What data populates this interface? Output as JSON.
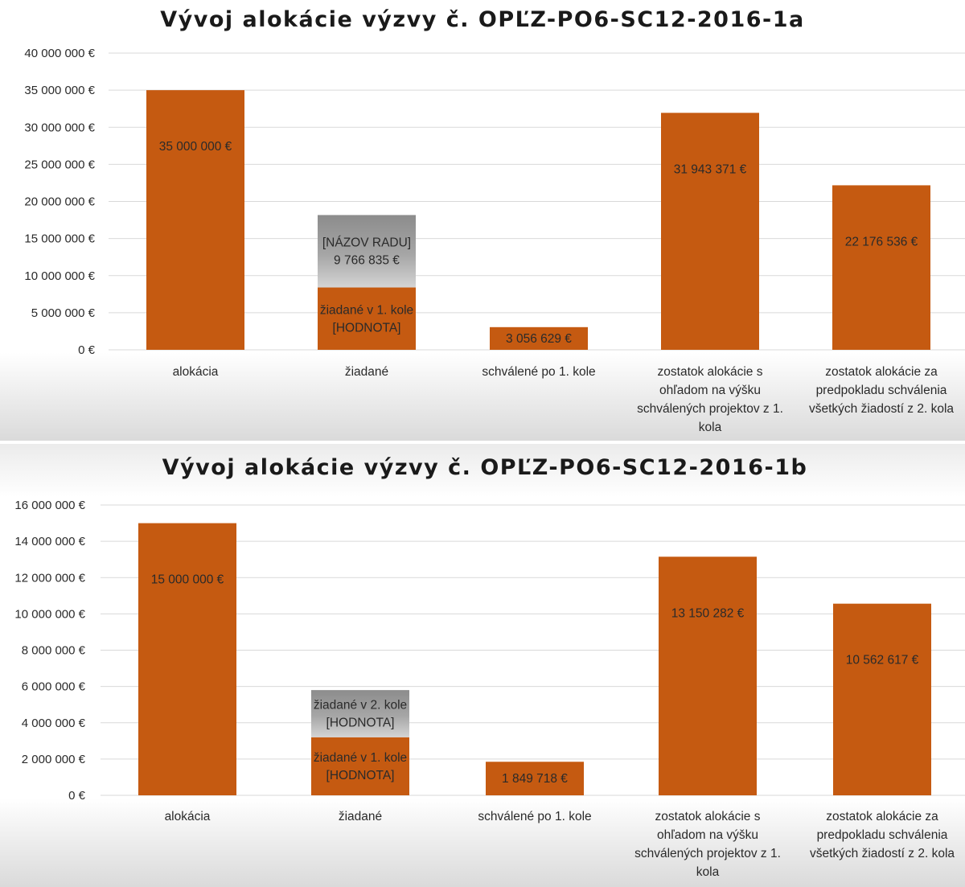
{
  "chart_data": [
    {
      "type": "bar",
      "stacked": true,
      "title": "Vývoj alokácie výzvy č. OPĽZ-PO6-SC12-2016-1a",
      "categories": [
        "alokácia",
        "žiadané",
        "schválené po 1. kole",
        "zostatok alokácie s ohľadom na výšku schválených projektov z 1. kola",
        "zostatok alokácie za predpokladu schválenia všetkých žiadostí z 2. kola"
      ],
      "category_lines": [
        [
          "alokácia"
        ],
        [
          "žiadané"
        ],
        [
          "schválené po 1. kole"
        ],
        [
          "zostatok alokácie s",
          "ohľadom na výšku",
          "schválených projektov z 1.",
          "kola"
        ],
        [
          "zostatok alokácie za",
          "predpokladu schválenia",
          "všetkých žiadostí z 2. kola"
        ]
      ],
      "series": [
        {
          "role": "base",
          "color": "#c55a11",
          "values": [
            35000000,
            8400000,
            3056629,
            31943371,
            22176536
          ]
        },
        {
          "role": "top",
          "color": "#a6a6a6",
          "values": [
            null,
            9766835,
            null,
            null,
            null
          ]
        }
      ],
      "labels": [
        {
          "category": 0,
          "segment": "base",
          "lines": [
            "35 000 000 €"
          ]
        },
        {
          "category": 1,
          "segment": "base",
          "lines": [
            "žiadané v 1. kole",
            "[HODNOTA]"
          ]
        },
        {
          "category": 1,
          "segment": "top",
          "lines": [
            "[NÁZOV RADU]",
            "9 766 835 €"
          ]
        },
        {
          "category": 2,
          "segment": "base",
          "lines": [
            "3 056 629 €"
          ]
        },
        {
          "category": 3,
          "segment": "base",
          "lines": [
            "31 943 371 €"
          ]
        },
        {
          "category": 4,
          "segment": "base",
          "lines": [
            "22 176 536 €"
          ]
        }
      ],
      "ylim": [
        0,
        40000000
      ],
      "yticks": [
        0,
        5000000,
        10000000,
        15000000,
        20000000,
        25000000,
        30000000,
        35000000,
        40000000
      ],
      "ytick_labels": [
        "0 €",
        "5 000 000 €",
        "10 000 000 €",
        "15 000 000 €",
        "20 000 000 €",
        "25 000 000 €",
        "30 000 000 €",
        "35 000 000 €",
        "40 000 000 €"
      ],
      "grid": true,
      "legend": "none"
    },
    {
      "type": "bar",
      "stacked": true,
      "title": "Vývoj alokácie výzvy č. OPĽZ-PO6-SC12-2016-1b",
      "categories": [
        "alokácia",
        "žiadané",
        "schválené po 1. kole",
        "zostatok alokácie s ohľadom na výšku schválených projektov z 1. kola",
        "zostatok alokácie za predpokladu schválenia všetkých žiadostí z 2. kola"
      ],
      "category_lines": [
        [
          "alokácia"
        ],
        [
          "žiadané"
        ],
        [
          "schválené po 1. kole"
        ],
        [
          "zostatok alokácie s",
          "ohľadom na výšku",
          "schválených projektov z 1.",
          "kola"
        ],
        [
          "zostatok alokácie za",
          "predpokladu schválenia",
          "všetkých žiadostí z 2. kola"
        ]
      ],
      "series": [
        {
          "role": "base",
          "color": "#c55a11",
          "values": [
            15000000,
            3200000,
            1849718,
            13150282,
            10562617
          ]
        },
        {
          "role": "top",
          "color": "#a6a6a6",
          "values": [
            null,
            2600000,
            null,
            null,
            null
          ]
        }
      ],
      "labels": [
        {
          "category": 0,
          "segment": "base",
          "lines": [
            "15 000 000 €"
          ]
        },
        {
          "category": 1,
          "segment": "base",
          "lines": [
            "žiadané v 1. kole",
            "[HODNOTA]"
          ]
        },
        {
          "category": 1,
          "segment": "top",
          "lines": [
            "žiadané v 2. kole",
            "[HODNOTA]"
          ]
        },
        {
          "category": 2,
          "segment": "base",
          "lines": [
            "1 849 718 €"
          ]
        },
        {
          "category": 3,
          "segment": "base",
          "lines": [
            "13 150 282 €"
          ]
        },
        {
          "category": 4,
          "segment": "base",
          "lines": [
            "10 562 617 €"
          ]
        }
      ],
      "ylim": [
        0,
        16000000
      ],
      "yticks": [
        0,
        2000000,
        4000000,
        6000000,
        8000000,
        10000000,
        12000000,
        14000000,
        16000000
      ],
      "ytick_labels": [
        "0 €",
        "2 000 000 €",
        "4 000 000 €",
        "6 000 000 €",
        "8 000 000 €",
        "10 000 000 €",
        "12 000 000 €",
        "14 000 000 €",
        "16 000 000 €"
      ],
      "grid": true,
      "legend": "none"
    }
  ]
}
